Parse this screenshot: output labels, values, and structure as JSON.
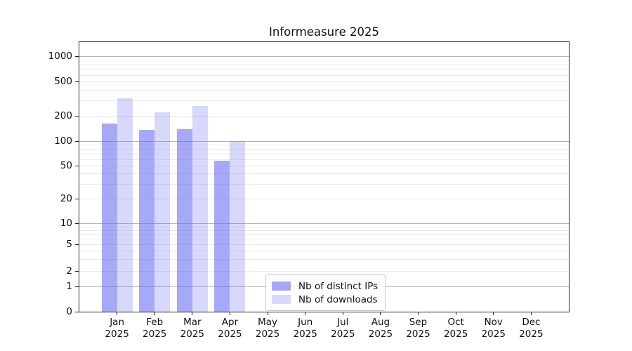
{
  "chart_data": {
    "type": "bar",
    "title": "Informeasure 2025",
    "categories": [
      "Jan",
      "Feb",
      "Mar",
      "Apr",
      "May",
      "Jun",
      "Jul",
      "Aug",
      "Sep",
      "Oct",
      "Nov",
      "Dec"
    ],
    "category_year": "2025",
    "series": [
      {
        "name": "Nb of distinct IPs",
        "color": "rgba(110,110,244,0.60)",
        "values": [
          163,
          137,
          140,
          57,
          null,
          null,
          null,
          null,
          null,
          null,
          null,
          null
        ]
      },
      {
        "name": "Nb of downloads",
        "color": "rgba(110,110,244,0.27)",
        "values": [
          320,
          220,
          258,
          100,
          null,
          null,
          null,
          null,
          null,
          null,
          null,
          null
        ]
      }
    ],
    "y_axis": {
      "scale": "symlog",
      "tick_labels": [
        "1000",
        "500",
        "200",
        "100",
        "50",
        "20",
        "10",
        "5",
        "2",
        "1",
        "0"
      ]
    },
    "ylim": [
      0,
      1500
    ],
    "grid": {
      "orientation": "horizontal",
      "major_values": [
        1,
        10,
        100,
        1000
      ],
      "minor_rule": "2-9 per decade"
    },
    "legend": {
      "location": "lower center inside plot"
    }
  }
}
